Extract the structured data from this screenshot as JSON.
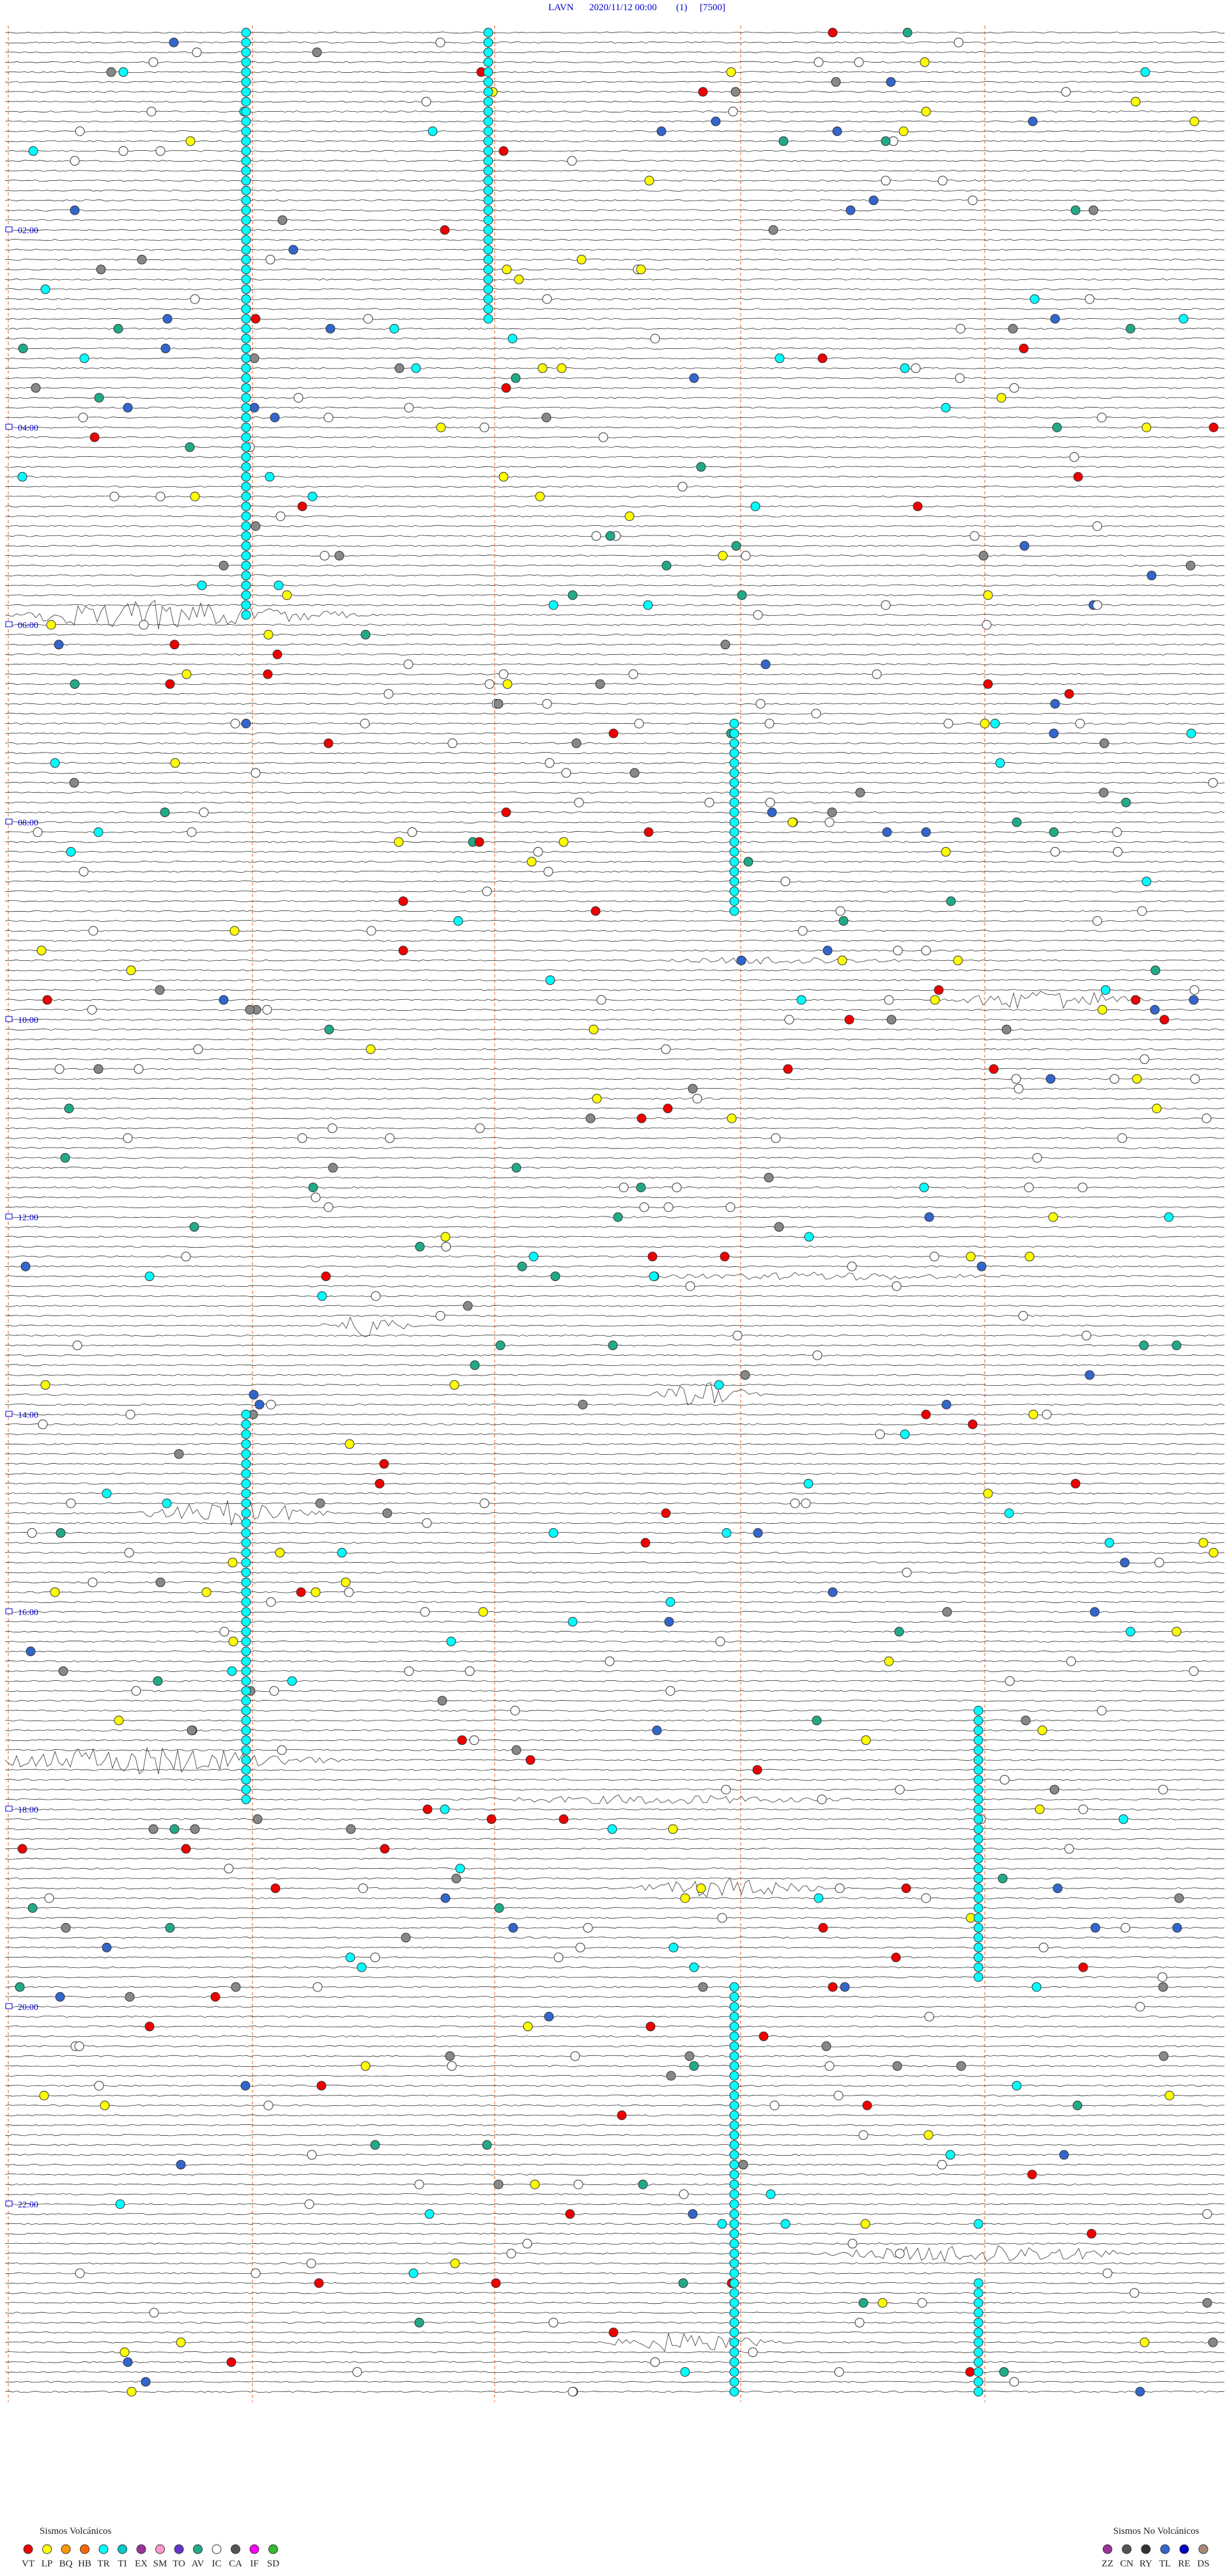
{
  "header": {
    "station": "LAVN",
    "datetime": "2020/11/12 00:00",
    "channel": "(1)",
    "scale": "[7500]"
  },
  "time_labels": [
    "02:00",
    "04:00",
    "06:00",
    "08:00",
    "10:00",
    "12:00",
    "14:00",
    "16:00",
    "18:00",
    "20:00",
    "22:00"
  ],
  "legend": {
    "volcanic": {
      "title": "Sismos Volcánicos",
      "types": [
        "VT",
        "LP",
        "BQ",
        "HB",
        "TR",
        "TI",
        "EX",
        "SM",
        "TO",
        "AV",
        "IC",
        "CA",
        "IF",
        "SD"
      ]
    },
    "non_volcanic": {
      "title": "Sismos No Volcánicos",
      "types": [
        "ZZ",
        "CN",
        "RY",
        "TL",
        "RE",
        "DS"
      ]
    }
  }
}
